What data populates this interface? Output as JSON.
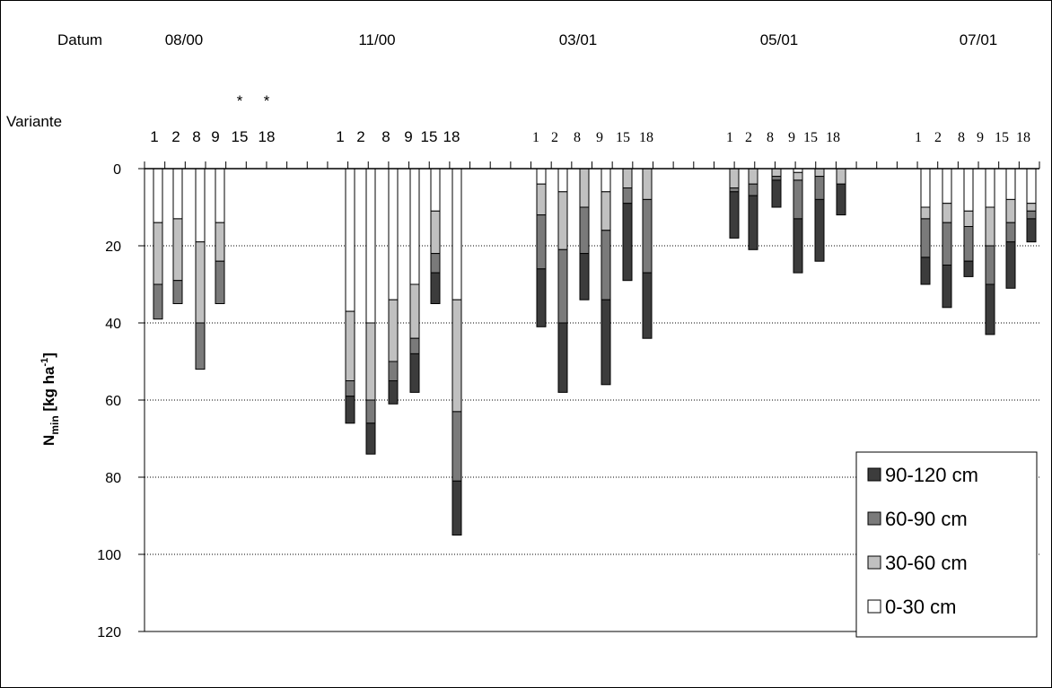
{
  "chart_data": {
    "type": "bar",
    "stacked": true,
    "inverted_y": true,
    "ylabel_main": "N",
    "ylabel_sub": "min",
    "ylabel_rest": " [kg ha",
    "ylabel_sup": "-1",
    "ylabel_end": "]",
    "datum_label": "Datum",
    "variante_label": "Variante",
    "ylim": [
      0,
      120
    ],
    "yticks": [
      "0",
      "20",
      "40",
      "60",
      "80",
      "100",
      "120"
    ],
    "grid": "horizontal dotted",
    "legend_position": "bottom-right",
    "colors": {
      "90-120 cm": "#3c3c3c",
      "60-90 cm": "#7a7a7a",
      "30-60 cm": "#c0c0c0",
      "0-30 cm": "#ffffff"
    },
    "layers": [
      "0-30 cm",
      "30-60 cm",
      "60-90 cm",
      "90-120 cm"
    ],
    "legend": [
      "90-120 cm",
      "60-90 cm",
      "30-60 cm",
      "0-30 cm"
    ],
    "groups": [
      {
        "datum": "08/00",
        "variants": [
          "1",
          "2",
          "8",
          "9",
          "15",
          "18"
        ],
        "asterisks": [
          "15",
          "18"
        ],
        "asterisk": "*",
        "bars": [
          {
            "variant": "1",
            "values": [
              14,
              16,
              9,
              0
            ]
          },
          {
            "variant": "2",
            "values": [
              13,
              16,
              6,
              0
            ]
          },
          {
            "variant": "8",
            "values": [
              19,
              21,
              12,
              0
            ]
          },
          {
            "variant": "9",
            "values": [
              14,
              10,
              11,
              0
            ]
          }
        ]
      },
      {
        "datum": "11/00",
        "variants": [
          "1",
          "2",
          "8",
          "9",
          "15",
          "18"
        ],
        "bars": [
          {
            "variant": "1",
            "values": [
              37,
              18,
              4,
              7
            ]
          },
          {
            "variant": "2",
            "values": [
              40,
              20,
              6,
              8
            ]
          },
          {
            "variant": "8",
            "values": [
              34,
              16,
              5,
              6
            ]
          },
          {
            "variant": "9",
            "values": [
              30,
              14,
              4,
              10
            ]
          },
          {
            "variant": "15",
            "values": [
              11,
              11,
              5,
              8
            ]
          },
          {
            "variant": "18",
            "values": [
              34,
              29,
              18,
              14
            ]
          }
        ]
      },
      {
        "datum": "03/01",
        "variants": [
          "1",
          "2",
          "8",
          "9",
          "15",
          "18"
        ],
        "bars": [
          {
            "variant": "1",
            "values": [
              4,
              8,
              14,
              15
            ]
          },
          {
            "variant": "2",
            "values": [
              6,
              15,
              19,
              18
            ]
          },
          {
            "variant": "8",
            "values": [
              0,
              10,
              12,
              12
            ]
          },
          {
            "variant": "9",
            "values": [
              6,
              10,
              18,
              22
            ]
          },
          {
            "variant": "15",
            "values": [
              0,
              5,
              4,
              20
            ]
          },
          {
            "variant": "18",
            "values": [
              0,
              8,
              19,
              17
            ]
          }
        ]
      },
      {
        "datum": "05/01",
        "variants": [
          "1",
          "2",
          "8",
          "9",
          "15",
          "18"
        ],
        "bars": [
          {
            "variant": "1",
            "values": [
              0,
              5,
              1,
              12
            ]
          },
          {
            "variant": "2",
            "values": [
              0,
              4,
              3,
              14
            ]
          },
          {
            "variant": "8",
            "values": [
              0,
              2,
              1,
              7
            ]
          },
          {
            "variant": "9",
            "values": [
              1,
              2,
              10,
              14
            ]
          },
          {
            "variant": "15",
            "values": [
              0,
              2,
              6,
              16
            ]
          },
          {
            "variant": "18",
            "values": [
              0,
              4,
              0,
              8
            ]
          }
        ]
      },
      {
        "datum": "07/01",
        "variants": [
          "1",
          "2",
          "8",
          "9",
          "15",
          "18"
        ],
        "bars": [
          {
            "variant": "1",
            "values": [
              10,
              3,
              10,
              7
            ]
          },
          {
            "variant": "2",
            "values": [
              9,
              5,
              11,
              11
            ]
          },
          {
            "variant": "8",
            "values": [
              11,
              4,
              9,
              4
            ]
          },
          {
            "variant": "9",
            "values": [
              10,
              10,
              10,
              13
            ]
          },
          {
            "variant": "15",
            "values": [
              8,
              6,
              5,
              12
            ]
          },
          {
            "variant": "18",
            "values": [
              9,
              2,
              2,
              6
            ]
          }
        ]
      }
    ]
  }
}
